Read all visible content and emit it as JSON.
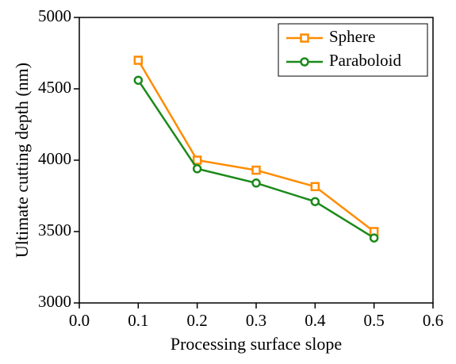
{
  "chart_data": {
    "type": "line",
    "x_label": "Processing surface slope",
    "y_label": "Ultimate cutting depth (nm)",
    "x": [
      0.1,
      0.2,
      0.3,
      0.4,
      0.5
    ],
    "series": [
      {
        "name": "Sphere",
        "color": "#ff8c00",
        "marker": "square",
        "values": [
          4700,
          4000,
          3930,
          3815,
          3500
        ]
      },
      {
        "name": "Paraboloid",
        "color": "#1a8a1a",
        "marker": "circle",
        "values": [
          4560,
          3940,
          3840,
          3710,
          3455
        ]
      }
    ],
    "xlim": [
      0,
      0.6
    ],
    "xticks": [
      {
        "value": 0,
        "label": "0.0"
      },
      0.1,
      0.2,
      0.3,
      0.4,
      0.5,
      0.6
    ],
    "ylim": [
      3000,
      5000
    ],
    "yticks": [
      3000,
      3500,
      4000,
      4500,
      5000
    ],
    "legend": "upper right"
  }
}
